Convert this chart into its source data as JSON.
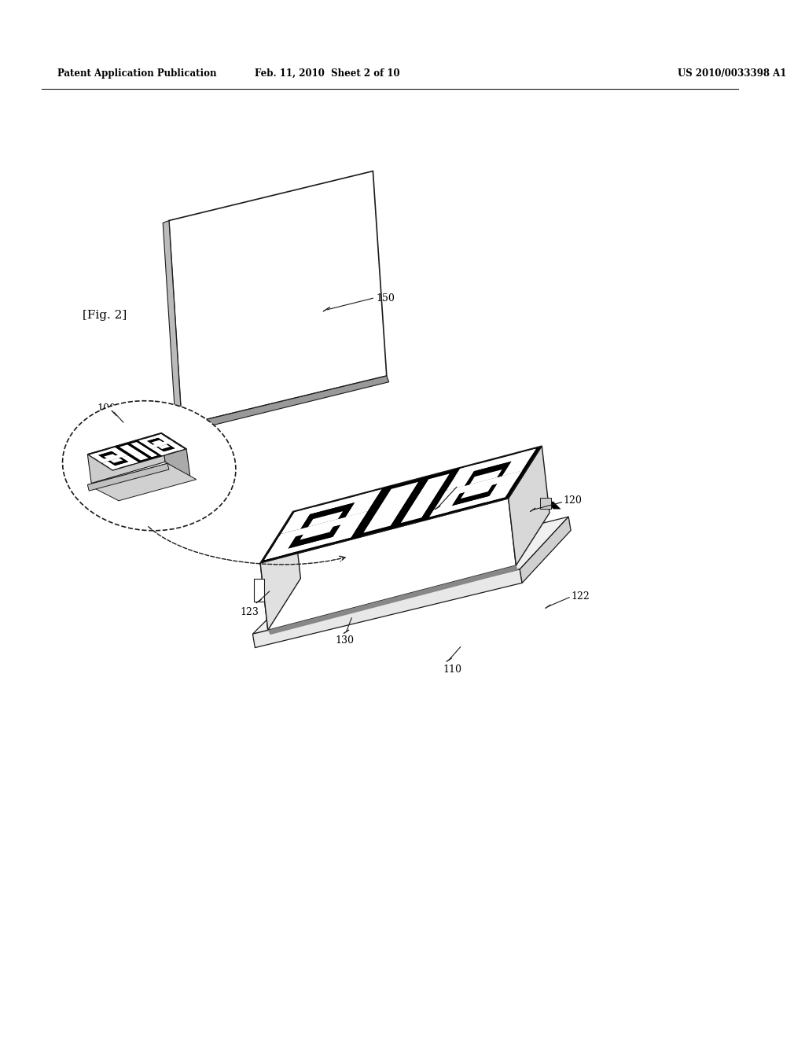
{
  "header_left": "Patent Application Publication",
  "header_mid": "Feb. 11, 2010  Sheet 2 of 10",
  "header_right": "US 2010/0033398 A1",
  "fig_label": "[Fig. 2]",
  "bg_color": "#ffffff",
  "line_color": "#1a1a1a"
}
